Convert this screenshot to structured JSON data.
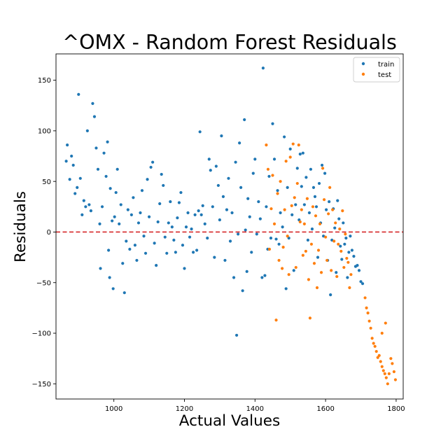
{
  "chart_data": {
    "type": "scatter",
    "title": "^OMX - Random Forest Residuals",
    "xlabel": "Actual Values",
    "ylabel": "Residuals",
    "xlim": [
      836,
      1820
    ],
    "ylim": [
      -165,
      176
    ],
    "xticks": [
      1000,
      1200,
      1400,
      1600,
      1800
    ],
    "yticks": [
      150,
      100,
      50,
      0,
      -50,
      -100,
      -150
    ],
    "xtick_labels": [
      "1000",
      "1200",
      "1400",
      "1600",
      "1800"
    ],
    "ytick_labels": [
      "150",
      "100",
      "50",
      "0",
      "−50",
      "−100",
      "−150"
    ],
    "grid": false,
    "legend_position": "upper right",
    "reference_line": {
      "y": 0,
      "color": "#d62728",
      "style": "dashed"
    },
    "series": [
      {
        "name": "train",
        "color": "#1f77b4",
        "points": [
          [
            865,
            70
          ],
          [
            868,
            86
          ],
          [
            875,
            52
          ],
          [
            880,
            75
          ],
          [
            885,
            66
          ],
          [
            890,
            38
          ],
          [
            896,
            44
          ],
          [
            900,
            136
          ],
          [
            905,
            53
          ],
          [
            910,
            17
          ],
          [
            915,
            31
          ],
          [
            920,
            25
          ],
          [
            925,
            100
          ],
          [
            930,
            27
          ],
          [
            935,
            21
          ],
          [
            940,
            127
          ],
          [
            945,
            114
          ],
          [
            950,
            83
          ],
          [
            955,
            62
          ],
          [
            960,
            8
          ],
          [
            962,
            -36
          ],
          [
            967,
            25
          ],
          [
            972,
            78
          ],
          [
            978,
            55
          ],
          [
            982,
            89
          ],
          [
            985,
            -18
          ],
          [
            988,
            -45
          ],
          [
            990,
            43
          ],
          [
            995,
            11
          ],
          [
            998,
            -56
          ],
          [
            1002,
            15
          ],
          [
            1006,
            39
          ],
          [
            1010,
            62
          ],
          [
            1015,
            8
          ],
          [
            1020,
            27
          ],
          [
            1025,
            -31
          ],
          [
            1030,
            -60
          ],
          [
            1035,
            -9
          ],
          [
            1040,
            22
          ],
          [
            1045,
            -17
          ],
          [
            1050,
            17
          ],
          [
            1055,
            34
          ],
          [
            1060,
            -13
          ],
          [
            1065,
            -28
          ],
          [
            1070,
            9
          ],
          [
            1075,
            19
          ],
          [
            1080,
            41
          ],
          [
            1085,
            -4
          ],
          [
            1090,
            -21
          ],
          [
            1095,
            52
          ],
          [
            1100,
            15
          ],
          [
            1105,
            64
          ],
          [
            1110,
            69
          ],
          [
            1115,
            -11
          ],
          [
            1120,
            -33
          ],
          [
            1125,
            10
          ],
          [
            1130,
            28
          ],
          [
            1135,
            57
          ],
          [
            1140,
            46
          ],
          [
            1145,
            -5
          ],
          [
            1150,
            -21
          ],
          [
            1155,
            9
          ],
          [
            1160,
            30
          ],
          [
            1165,
            5
          ],
          [
            1170,
            -8
          ],
          [
            1175,
            -20
          ],
          [
            1180,
            14
          ],
          [
            1185,
            29
          ],
          [
            1190,
            39
          ],
          [
            1195,
            -13
          ],
          [
            1200,
            -36
          ],
          [
            1205,
            5
          ],
          [
            1210,
            19
          ],
          [
            1215,
            -5
          ],
          [
            1220,
            3
          ],
          [
            1225,
            -20
          ],
          [
            1230,
            17
          ],
          [
            1235,
            -18
          ],
          [
            1240,
            21
          ],
          [
            1244,
            99
          ],
          [
            1248,
            17
          ],
          [
            1252,
            26
          ],
          [
            1258,
            8
          ],
          [
            1265,
            -6
          ],
          [
            1270,
            72
          ],
          [
            1274,
            61
          ],
          [
            1280,
            25
          ],
          [
            1285,
            -25
          ],
          [
            1290,
            65
          ],
          [
            1296,
            46
          ],
          [
            1300,
            12
          ],
          [
            1305,
            95
          ],
          [
            1310,
            35
          ],
          [
            1315,
            -28
          ],
          [
            1320,
            22
          ],
          [
            1325,
            53
          ],
          [
            1330,
            -9
          ],
          [
            1335,
            19
          ],
          [
            1340,
            -45
          ],
          [
            1345,
            69
          ],
          [
            1348,
            -102
          ],
          [
            1352,
            -2
          ],
          [
            1356,
            88
          ],
          [
            1360,
            44
          ],
          [
            1365,
            -58
          ],
          [
            1370,
            111
          ],
          [
            1373,
            2
          ],
          [
            1377,
            -39
          ],
          [
            1380,
            33
          ],
          [
            1385,
            15
          ],
          [
            1390,
            -20
          ],
          [
            1395,
            58
          ],
          [
            1400,
            72
          ],
          [
            1405,
            -2
          ],
          [
            1410,
            30
          ],
          [
            1415,
            13
          ],
          [
            1420,
            -45
          ],
          [
            1423,
            162
          ],
          [
            1428,
            -43
          ],
          [
            1432,
            25
          ],
          [
            1436,
            -17
          ],
          [
            1440,
            55
          ],
          [
            1445,
            -6
          ],
          [
            1450,
            107
          ],
          [
            1455,
            72
          ],
          [
            1460,
            -7
          ],
          [
            1464,
            41
          ],
          [
            1468,
            -12
          ],
          [
            1472,
            19
          ],
          [
            1478,
            5
          ],
          [
            1483,
            94
          ],
          [
            1488,
            -56
          ],
          [
            1492,
            44
          ],
          [
            1496,
            -6
          ],
          [
            1500,
            82
          ],
          [
            1505,
            17
          ],
          [
            1510,
            -38
          ],
          [
            1515,
            27
          ],
          [
            1520,
            63
          ],
          [
            1525,
            12
          ],
          [
            1528,
            77
          ],
          [
            1532,
            45
          ],
          [
            1536,
            78
          ],
          [
            1540,
            27
          ],
          [
            1545,
            54
          ],
          [
            1550,
            -8
          ],
          [
            1554,
            19
          ],
          [
            1558,
            62
          ],
          [
            1562,
            3
          ],
          [
            1566,
            44
          ],
          [
            1570,
            35
          ],
          [
            1574,
            25
          ],
          [
            1578,
            -25
          ],
          [
            1582,
            48
          ],
          [
            1586,
            9
          ],
          [
            1590,
            66
          ],
          [
            1594,
            -4
          ],
          [
            1598,
            58
          ],
          [
            1602,
            22
          ],
          [
            1606,
            -28
          ],
          [
            1610,
            30
          ],
          [
            1614,
            -62
          ],
          [
            1618,
            -8
          ],
          [
            1622,
            23
          ],
          [
            1626,
            4
          ],
          [
            1630,
            -40
          ],
          [
            1634,
            31
          ],
          [
            1638,
            13
          ],
          [
            1642,
            -14
          ],
          [
            1646,
            -27
          ],
          [
            1650,
            9
          ],
          [
            1654,
            -12
          ],
          [
            1658,
            -6
          ],
          [
            1662,
            -45
          ],
          [
            1666,
            -20
          ],
          [
            1670,
            -4
          ],
          [
            1675,
            -18
          ],
          [
            1680,
            -24
          ],
          [
            1685,
            -34
          ],
          [
            1690,
            -33
          ],
          [
            1695,
            -38
          ],
          [
            1700,
            -49
          ],
          [
            1705,
            -51
          ]
        ]
      },
      {
        "name": "test",
        "color": "#ff7f0e",
        "points": [
          [
            1432,
            86
          ],
          [
            1437,
            62
          ],
          [
            1441,
            -17
          ],
          [
            1446,
            23
          ],
          [
            1450,
            56
          ],
          [
            1455,
            8
          ],
          [
            1460,
            -87
          ],
          [
            1464,
            38
          ],
          [
            1468,
            -28
          ],
          [
            1472,
            50
          ],
          [
            1477,
            -36
          ],
          [
            1480,
            -15
          ],
          [
            1484,
            22
          ],
          [
            1488,
            70
          ],
          [
            1492,
            -4
          ],
          [
            1496,
            -42
          ],
          [
            1500,
            74
          ],
          [
            1504,
            26
          ],
          [
            1508,
            87
          ],
          [
            1512,
            34
          ],
          [
            1516,
            -35
          ],
          [
            1520,
            48
          ],
          [
            1524,
            86
          ],
          [
            1528,
            10
          ],
          [
            1532,
            22
          ],
          [
            1536,
            -23
          ],
          [
            1540,
            8
          ],
          [
            1544,
            -19
          ],
          [
            1548,
            33
          ],
          [
            1552,
            -47
          ],
          [
            1556,
            -85
          ],
          [
            1560,
            -12
          ],
          [
            1564,
            25
          ],
          [
            1568,
            -31
          ],
          [
            1572,
            16
          ],
          [
            1576,
            -55
          ],
          [
            1580,
            -18
          ],
          [
            1584,
            8
          ],
          [
            1588,
            -40
          ],
          [
            1592,
            63
          ],
          [
            1596,
            32
          ],
          [
            1600,
            -5
          ],
          [
            1604,
            -28
          ],
          [
            1608,
            18
          ],
          [
            1612,
            44
          ],
          [
            1616,
            -38
          ],
          [
            1620,
            22
          ],
          [
            1624,
            -9
          ],
          [
            1628,
            9
          ],
          [
            1632,
            -44
          ],
          [
            1636,
            -12
          ],
          [
            1640,
            3
          ],
          [
            1644,
            -19
          ],
          [
            1648,
            21
          ],
          [
            1652,
            -35
          ],
          [
            1656,
            -2
          ],
          [
            1660,
            -26
          ],
          [
            1664,
            -30
          ],
          [
            1668,
            -55
          ],
          [
            1672,
            -42
          ],
          [
            1712,
            -65
          ],
          [
            1716,
            -75
          ],
          [
            1720,
            -80
          ],
          [
            1724,
            -88
          ],
          [
            1728,
            -95
          ],
          [
            1732,
            -105
          ],
          [
            1736,
            -110
          ],
          [
            1740,
            -113
          ],
          [
            1744,
            -118
          ],
          [
            1748,
            -124
          ],
          [
            1752,
            -122
          ],
          [
            1756,
            -128
          ],
          [
            1760,
            -133
          ],
          [
            1764,
            -137
          ],
          [
            1768,
            -140
          ],
          [
            1772,
            -144
          ],
          [
            1776,
            -150
          ],
          [
            1780,
            -140
          ],
          [
            1785,
            -125
          ],
          [
            1789,
            -130
          ],
          [
            1794,
            -138
          ],
          [
            1798,
            -146
          ],
          [
            1770,
            -90
          ],
          [
            1760,
            -100
          ]
        ]
      }
    ]
  }
}
